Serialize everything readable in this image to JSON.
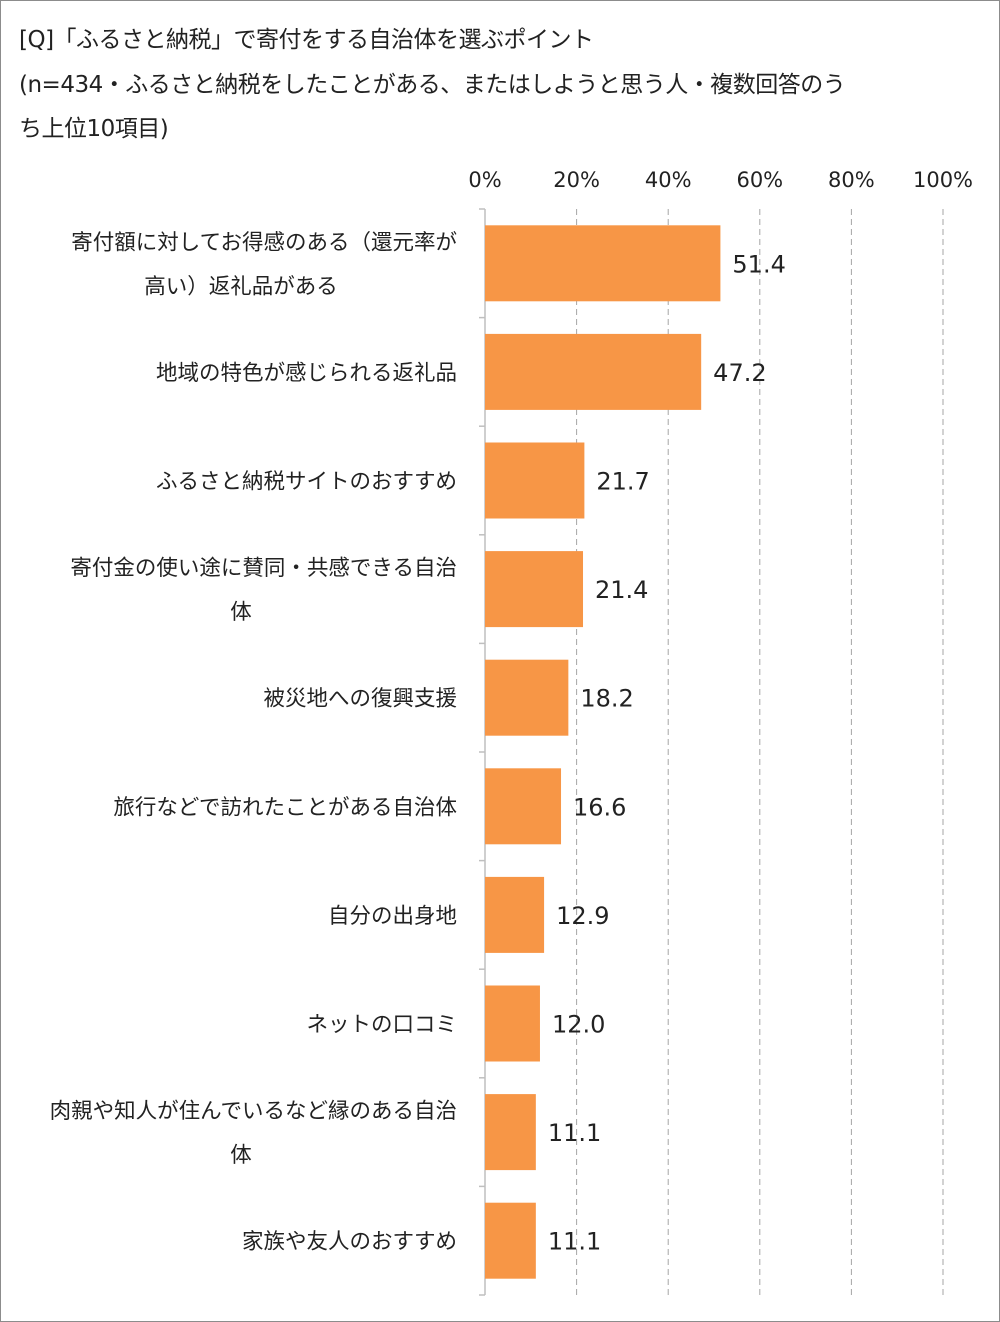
{
  "title": {
    "line1": "[Q]「ふるさと納税」で寄付をする自治体を選ぶポイント",
    "line2": "(n=434・ふるさと納税をしたことがある、またはしようと思う人・複数回答のう",
    "line3": "ち上位10項目)"
  },
  "colors": {
    "bar": "#f79646",
    "grid": "#a6a6a6",
    "axis": "#bfbfbf",
    "text": "#222222"
  },
  "chart_data": {
    "type": "bar",
    "orientation": "horizontal",
    "xlim": [
      0,
      100
    ],
    "x_ticks": [
      "0%",
      "20%",
      "40%",
      "60%",
      "80%",
      "100%"
    ],
    "grid": "vertical dashed",
    "categories": [
      [
        "寄付額に対してお得感のある（還元率が",
        "高い）返礼品がある"
      ],
      [
        "地域の特色が感じられる返礼品"
      ],
      [
        "ふるさと納税サイトのおすすめ"
      ],
      [
        "寄付金の使い途に賛同・共感できる自治",
        "体"
      ],
      [
        "被災地への復興支援"
      ],
      [
        "旅行などで訪れたことがある自治体"
      ],
      [
        "自分の出身地"
      ],
      [
        "ネットの口コミ"
      ],
      [
        "肉親や知人が住んでいるなど縁のある自治",
        "体"
      ],
      [
        "家族や友人のおすすめ"
      ]
    ],
    "values": [
      51.4,
      47.2,
      21.7,
      21.4,
      18.2,
      16.6,
      12.9,
      12.0,
      11.1,
      11.1
    ],
    "value_labels": [
      "51.4",
      "47.2",
      "21.7",
      "21.4",
      "18.2",
      "16.6",
      "12.9",
      "12.0",
      "11.1",
      "11.1"
    ]
  }
}
